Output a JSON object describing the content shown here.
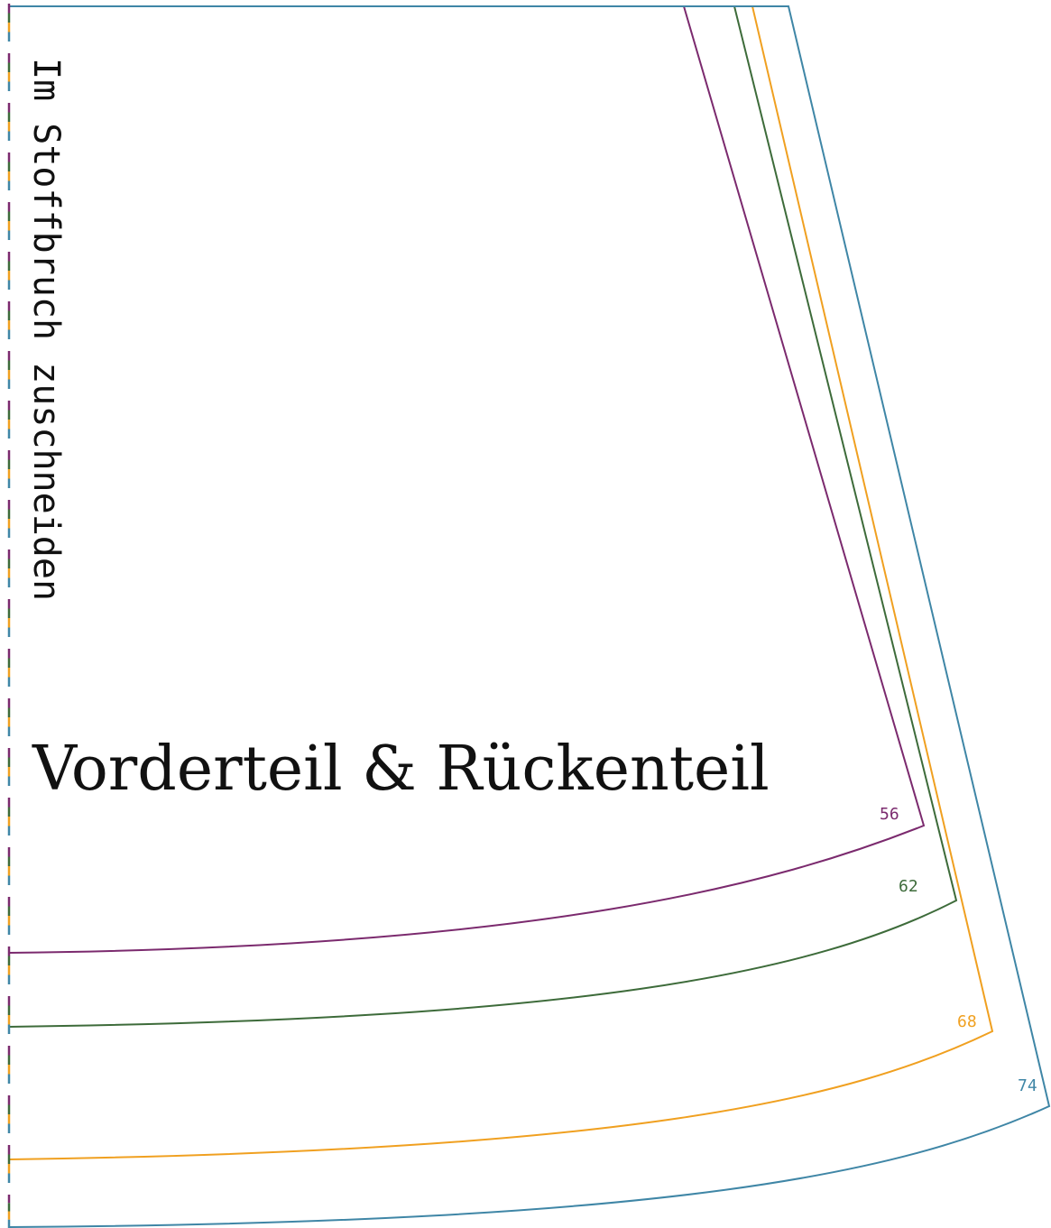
{
  "fold_instruction": "Im Stoffbruch zuschneiden",
  "title": "Vorderteil & Rückenteil",
  "sizes": [
    {
      "label": "56",
      "color": "#7b2a6e"
    },
    {
      "label": "62",
      "color": "#3d6b3a"
    },
    {
      "label": "68",
      "color": "#f0a020"
    },
    {
      "label": "74",
      "color": "#3f86a6"
    }
  ],
  "fold_line_colors": [
    "#7b2a6e",
    "#3d6b3a",
    "#f0a020",
    "#3f86a6"
  ]
}
